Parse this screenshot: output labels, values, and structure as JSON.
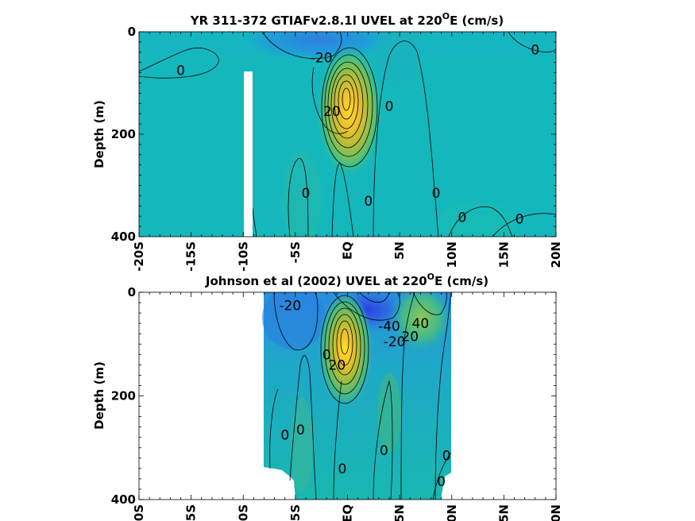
{
  "chart_data": [
    {
      "type": "heatmap",
      "title": "YR 311-372 GTIAFv2.8.1l UVEL at 220",
      "title_sup": "O",
      "title_suffix": "E (cm/s)",
      "ylabel": "Depth (m)",
      "xlabel": "",
      "xlim": [
        -20,
        20
      ],
      "ylim": [
        0,
        400
      ],
      "y_reversed": true,
      "xticks": [
        -20,
        -15,
        -10,
        -5,
        0,
        5,
        10,
        15,
        20
      ],
      "xtick_labels": [
        "-20S",
        "-15S",
        "-10S",
        "-5S",
        "EQ",
        "5N",
        "10N",
        "15N",
        "20N"
      ],
      "yticks": [
        0,
        200,
        400
      ],
      "ytick_labels": [
        "0",
        "200",
        "400"
      ],
      "colormap": "parula",
      "background_color": "#14b8bc",
      "features": [
        {
          "kind": "jet",
          "x": 0,
          "depth": 130,
          "label": "equatorial undercurrent core"
        },
        {
          "kind": "westward",
          "x": -2,
          "depth": 30
        }
      ],
      "contour_labels": [
        {
          "text": "0",
          "x": -16,
          "depth": 75
        },
        {
          "text": "-20",
          "x": -2.5,
          "depth": 50
        },
        {
          "text": "0",
          "x": 18,
          "depth": 35
        },
        {
          "text": "20",
          "x": -1.5,
          "depth": 155
        },
        {
          "text": "0",
          "x": 4,
          "depth": 145
        },
        {
          "text": "0",
          "x": -4,
          "depth": 315
        },
        {
          "text": "0",
          "x": 2,
          "depth": 330
        },
        {
          "text": "0",
          "x": 8.5,
          "depth": 315
        },
        {
          "text": "0",
          "x": 11,
          "depth": 362
        },
        {
          "text": "0",
          "x": 16.5,
          "depth": 365
        }
      ],
      "masked_region": {
        "x_range": [
          -10.2,
          -9.3
        ],
        "depth_range": [
          75,
          400
        ]
      }
    },
    {
      "type": "heatmap",
      "title": "Johnson et al (2002) UVEL at 220",
      "title_sup": "O",
      "title_suffix": "E (cm/s)",
      "ylabel": "Depth (m)",
      "xlabel": "",
      "xlim": [
        -20,
        20
      ],
      "ylim": [
        0,
        400
      ],
      "y_reversed": true,
      "xticks": [
        -20,
        -15,
        -10,
        -5,
        0,
        5,
        10,
        15,
        20
      ],
      "xtick_labels": [
        "-20S",
        "-15S",
        "-10S",
        "-5S",
        "EQ",
        "5N",
        "10N",
        "15N",
        "20N"
      ],
      "yticks": [
        0,
        200,
        400
      ],
      "ytick_labels": [
        "0",
        "200",
        "400"
      ],
      "colormap": "parula",
      "data_extent_x": [
        -8,
        10
      ],
      "contour_labels": [
        {
          "text": "-20",
          "x": -5.5,
          "depth": 25
        },
        {
          "text": "-40",
          "x": 4,
          "depth": 65
        },
        {
          "text": "40",
          "x": 7,
          "depth": 60
        },
        {
          "text": "-20",
          "x": 4.5,
          "depth": 95
        },
        {
          "text": "20",
          "x": 6,
          "depth": 85
        },
        {
          "text": "0",
          "x": -2,
          "depth": 120
        },
        {
          "text": "20",
          "x": -1,
          "depth": 140
        },
        {
          "text": "0",
          "x": -6,
          "depth": 275
        },
        {
          "text": "0",
          "x": -4.5,
          "depth": 265
        },
        {
          "text": "0",
          "x": 3.5,
          "depth": 305
        },
        {
          "text": "0",
          "x": -0.5,
          "depth": 340
        },
        {
          "text": "0",
          "x": 9.5,
          "depth": 315
        },
        {
          "text": "0",
          "x": 9,
          "depth": 365
        }
      ]
    }
  ]
}
